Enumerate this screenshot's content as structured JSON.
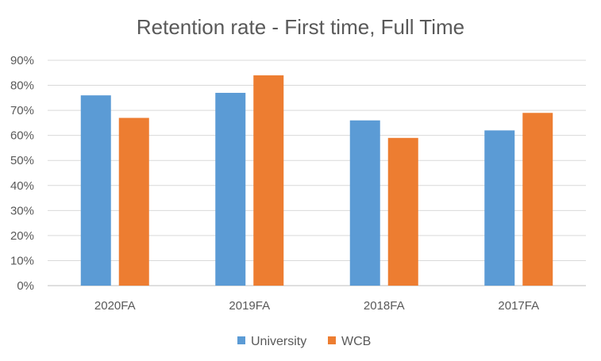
{
  "chart_data": {
    "type": "bar",
    "title": "Retention rate - First time, Full Time",
    "xlabel": "",
    "ylabel": "",
    "categories": [
      "2020FA",
      "2019FA",
      "2018FA",
      "2017FA"
    ],
    "series": [
      {
        "name": "University",
        "values": [
          0.76,
          0.77,
          0.66,
          0.62
        ],
        "color": "#5b9bd5"
      },
      {
        "name": "WCB",
        "values": [
          0.67,
          0.84,
          0.59,
          0.69
        ],
        "color": "#ed7d31"
      }
    ],
    "ylim": [
      0,
      0.9
    ],
    "yticks": [
      "0%",
      "10%",
      "20%",
      "30%",
      "40%",
      "50%",
      "60%",
      "70%",
      "80%",
      "90%"
    ],
    "grid": true,
    "legend_position": "bottom"
  }
}
